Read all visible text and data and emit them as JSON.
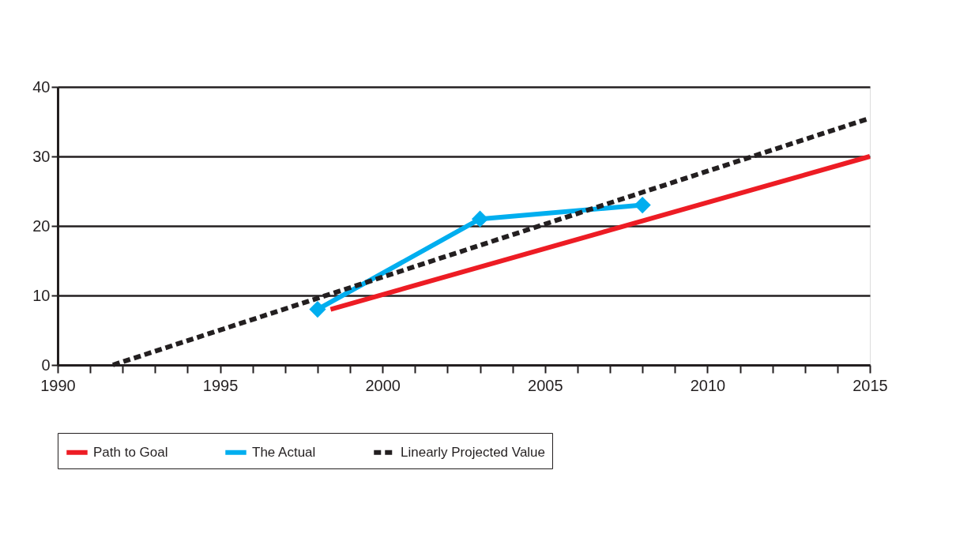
{
  "chart_data": {
    "type": "line",
    "xlim": [
      1990,
      2015
    ],
    "ylim": [
      0,
      40
    ],
    "xticks": [
      1990,
      {
        "value": 1991,
        "label": null
      },
      {
        "value": 1992,
        "label": null
      },
      {
        "value": 1993,
        "label": null
      },
      {
        "value": 1994,
        "label": null
      },
      1995,
      {
        "value": 1996,
        "label": null
      },
      {
        "value": 1997,
        "label": null
      },
      {
        "value": 1998,
        "label": null
      },
      {
        "value": 1999,
        "label": null
      },
      2000,
      {
        "value": 2001,
        "label": null
      },
      {
        "value": 2002,
        "label": null
      },
      {
        "value": 2003,
        "label": null
      },
      {
        "value": 2004,
        "label": null
      },
      2005,
      {
        "value": 2006,
        "label": null
      },
      {
        "value": 2007,
        "label": null
      },
      {
        "value": 2008,
        "label": null
      },
      {
        "value": 2009,
        "label": null
      },
      2010,
      {
        "value": 2011,
        "label": null
      },
      {
        "value": 2012,
        "label": null
      },
      {
        "value": 2013,
        "label": null
      },
      {
        "value": 2014,
        "label": null
      },
      2015
    ],
    "yticks": [
      0,
      10,
      20,
      30,
      40
    ],
    "grid": "y",
    "legend": "bottom",
    "series": [
      {
        "name": "Path to Goal",
        "color": "#ed1c24",
        "x": [
          1998.4,
          2015
        ],
        "values": [
          8,
          30
        ],
        "marker": "none",
        "line_style": "solid"
      },
      {
        "name": "The Actual",
        "color": "#00aeef",
        "x": [
          1998,
          2003,
          2008
        ],
        "values": [
          8,
          21,
          23
        ],
        "marker": "diamond",
        "line_style": "solid"
      },
      {
        "name": "Linearly Projected Value",
        "color": "#231f20",
        "x": [
          1991.7,
          2015
        ],
        "values": [
          0,
          35.5
        ],
        "marker": "none",
        "line_style": "dashed"
      }
    ]
  }
}
